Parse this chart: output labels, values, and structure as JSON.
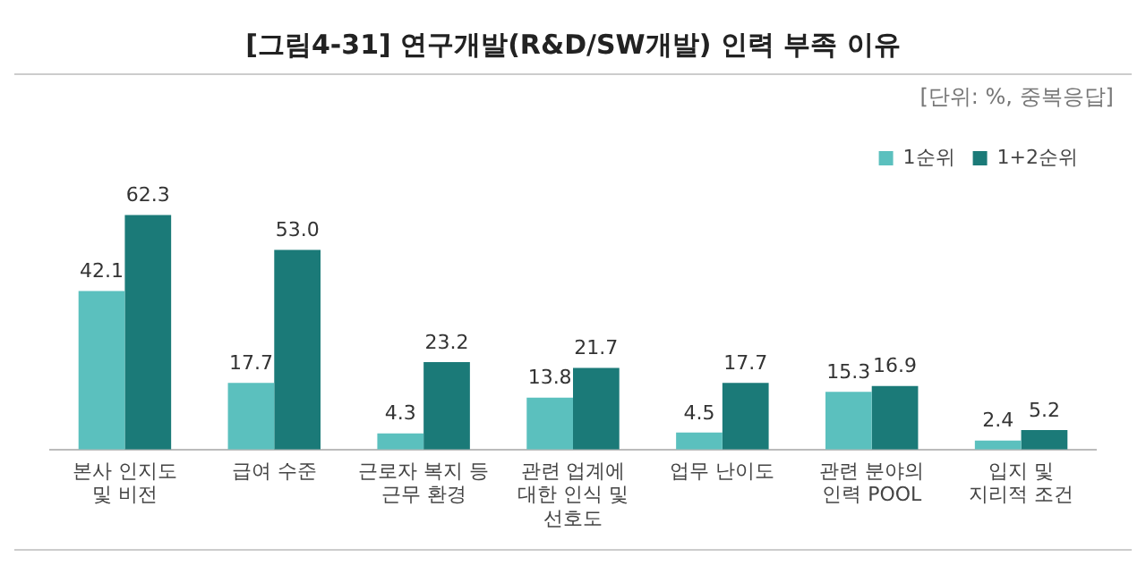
{
  "chart_data": {
    "type": "bar",
    "title": "[그림4-31] 연구개발(R&D/SW개발) 인력 부족 이유",
    "subtitle": "[단위: %, 중복응답]",
    "categories": [
      "본사 인지도\n및 비전",
      "급여 수준",
      "근로자 복지 등\n근무 환경",
      "관련 업계에\n대한 인식 및\n선호도",
      "업무 난이도",
      "관련 분야의\n인력 POOL",
      "입지 및\n지리적 조건"
    ],
    "series": [
      {
        "name": "1순위",
        "color": "#5bc0be",
        "values": [
          42.1,
          17.7,
          4.3,
          13.8,
          4.5,
          15.3,
          2.4
        ],
        "value_labels": [
          "42.1",
          "17.7",
          "4.3",
          "13.8",
          "4.5",
          "15.3",
          "2.4"
        ]
      },
      {
        "name": "1+2순위",
        "color": "#1b7a78",
        "values": [
          62.3,
          53.0,
          23.2,
          21.7,
          17.7,
          16.9,
          5.2
        ],
        "value_labels": [
          "62.3",
          "53.0",
          "23.2",
          "21.7",
          "17.7",
          "16.9",
          "5.2"
        ]
      }
    ],
    "legend": "top right",
    "grid": false
  }
}
